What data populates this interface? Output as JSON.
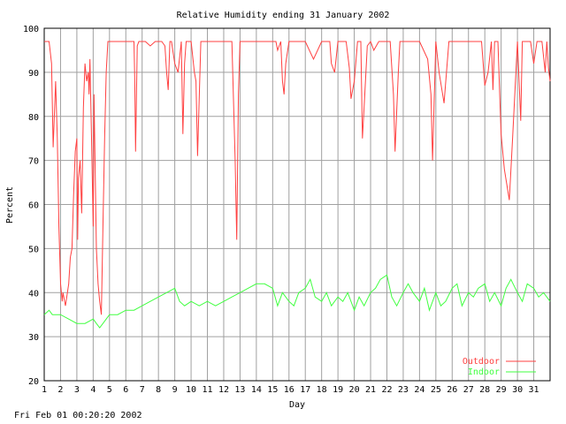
{
  "chart_data": {
    "type": "line",
    "title": "Relative Humidity ending 31 January 2002",
    "xlabel": "Day",
    "ylabel": "Percent",
    "xlim": [
      1,
      32
    ],
    "ylim": [
      20,
      100
    ],
    "y_ticks": [
      20,
      30,
      40,
      50,
      60,
      70,
      80,
      90,
      100
    ],
    "x_ticks": [
      "1",
      "2",
      "3",
      "4",
      "5",
      "6",
      "7",
      "8",
      "9",
      "10",
      "11",
      "12",
      "13",
      "14",
      "15",
      "16",
      "17",
      "18",
      "19",
      "20",
      "21",
      "22",
      "23",
      "24",
      "25",
      "26",
      "27",
      "28",
      "29",
      "30",
      "31"
    ],
    "grid": true,
    "legend_position": "bottom-right",
    "series": [
      {
        "name": "Outdoor",
        "color": "#ff4040",
        "x": [
          1.0,
          1.3,
          1.45,
          1.55,
          1.7,
          1.8,
          1.9,
          2.0,
          2.1,
          2.15,
          2.3,
          2.5,
          2.6,
          2.7,
          2.8,
          2.9,
          3.0,
          3.05,
          3.1,
          3.2,
          3.3,
          3.4,
          3.5,
          3.6,
          3.7,
          3.75,
          3.8,
          3.9,
          4.0,
          4.05,
          4.2,
          4.3,
          4.4,
          4.5,
          4.6,
          4.7,
          4.8,
          4.9,
          5.0,
          5.5,
          6.0,
          6.5,
          6.55,
          6.6,
          6.7,
          6.8,
          7.0,
          7.2,
          7.5,
          7.8,
          8.0,
          8.2,
          8.4,
          8.5,
          8.6,
          8.7,
          8.8,
          9.0,
          9.2,
          9.4,
          9.5,
          9.6,
          9.7,
          9.8,
          10.0,
          10.2,
          10.3,
          10.4,
          10.6,
          10.8,
          11.0,
          11.2,
          11.5,
          12.0,
          12.5,
          12.7,
          12.8,
          12.9,
          13.0,
          13.5,
          14.0,
          14.5,
          15.0,
          15.2,
          15.3,
          15.5,
          15.6,
          15.7,
          15.8,
          16.0,
          16.5,
          17.0,
          17.5,
          18.0,
          18.5,
          18.6,
          18.8,
          19.0,
          19.2,
          19.5,
          19.7,
          19.8,
          20.0,
          20.2,
          20.4,
          20.5,
          20.6,
          20.8,
          21.0,
          21.2,
          21.5,
          22.0,
          22.2,
          22.4,
          22.5,
          22.7,
          22.8,
          23.0,
          23.5,
          24.0,
          24.5,
          24.7,
          24.8,
          25.0,
          25.2,
          25.5,
          25.8,
          26.0,
          26.5,
          27.0,
          27.2,
          27.5,
          27.8,
          28.0,
          28.2,
          28.4,
          28.5,
          28.6,
          28.7,
          28.8,
          29.0,
          29.2,
          29.5,
          29.7,
          30.0,
          30.2,
          30.3,
          30.5,
          30.8,
          31.0,
          31.2,
          31.5,
          31.7,
          31.8,
          31.9,
          32.0
        ],
        "values": [
          97,
          97,
          92,
          73,
          88,
          75,
          55,
          42,
          38,
          40,
          37,
          42,
          48,
          50,
          62,
          72,
          75,
          52,
          66,
          70,
          58,
          82,
          92,
          88,
          90,
          85,
          93,
          75,
          55,
          85,
          50,
          42,
          38,
          35,
          55,
          75,
          90,
          97,
          97,
          97,
          97,
          97,
          88,
          72,
          96,
          97,
          97,
          97,
          96,
          97,
          97,
          97,
          96,
          90,
          86,
          97,
          97,
          92,
          90,
          97,
          76,
          92,
          97,
          97,
          97,
          90,
          88,
          71,
          97,
          97,
          97,
          97,
          97,
          97,
          97,
          70,
          52,
          85,
          97,
          97,
          97,
          97,
          97,
          97,
          95,
          97,
          88,
          85,
          92,
          97,
          97,
          97,
          93,
          97,
          97,
          92,
          90,
          97,
          97,
          97,
          91,
          84,
          88,
          97,
          97,
          75,
          82,
          96,
          97,
          95,
          97,
          97,
          97,
          85,
          72,
          90,
          97,
          97,
          97,
          97,
          93,
          85,
          70,
          97,
          90,
          83,
          97,
          97,
          97,
          97,
          97,
          97,
          97,
          87,
          90,
          97,
          86,
          97,
          97,
          97,
          76,
          68,
          61,
          75,
          97,
          79,
          97,
          97,
          97,
          92,
          97,
          97,
          90,
          97,
          91,
          88
        ]
      },
      {
        "name": "Indoor",
        "color": "#40ff40",
        "x": [
          1.0,
          1.3,
          1.5,
          2.0,
          2.5,
          3.0,
          3.5,
          4.0,
          4.2,
          4.4,
          4.6,
          4.8,
          5.0,
          5.5,
          6.0,
          6.5,
          7.0,
          7.5,
          8.0,
          8.5,
          9.0,
          9.3,
          9.6,
          10.0,
          10.5,
          11.0,
          11.5,
          12.0,
          12.5,
          13.0,
          13.5,
          14.0,
          14.5,
          15.0,
          15.3,
          15.6,
          16.0,
          16.3,
          16.6,
          17.0,
          17.3,
          17.6,
          18.0,
          18.3,
          18.6,
          19.0,
          19.3,
          19.6,
          20.0,
          20.3,
          20.6,
          21.0,
          21.3,
          21.6,
          22.0,
          22.3,
          22.6,
          23.0,
          23.3,
          23.6,
          24.0,
          24.3,
          24.6,
          25.0,
          25.3,
          25.6,
          26.0,
          26.3,
          26.6,
          27.0,
          27.3,
          27.6,
          28.0,
          28.3,
          28.6,
          29.0,
          29.3,
          29.6,
          30.0,
          30.3,
          30.6,
          31.0,
          31.3,
          31.6,
          32.0
        ],
        "values": [
          35,
          36,
          35,
          35,
          34,
          33,
          33,
          34,
          33,
          32,
          33,
          34,
          35,
          35,
          36,
          36,
          37,
          38,
          39,
          40,
          41,
          38,
          37,
          38,
          37,
          38,
          37,
          38,
          39,
          40,
          41,
          42,
          42,
          41,
          37,
          40,
          38,
          37,
          40,
          41,
          43,
          39,
          38,
          40,
          37,
          39,
          38,
          40,
          36,
          39,
          37,
          40,
          41,
          43,
          44,
          39,
          37,
          40,
          42,
          40,
          38,
          41,
          36,
          40,
          37,
          38,
          41,
          42,
          37,
          40,
          39,
          41,
          42,
          38,
          40,
          37,
          41,
          43,
          40,
          38,
          42,
          41,
          39,
          40,
          38
        ]
      }
    ]
  },
  "footer": {
    "timestamp": "Fri Feb 01 00:20:20 2002"
  }
}
